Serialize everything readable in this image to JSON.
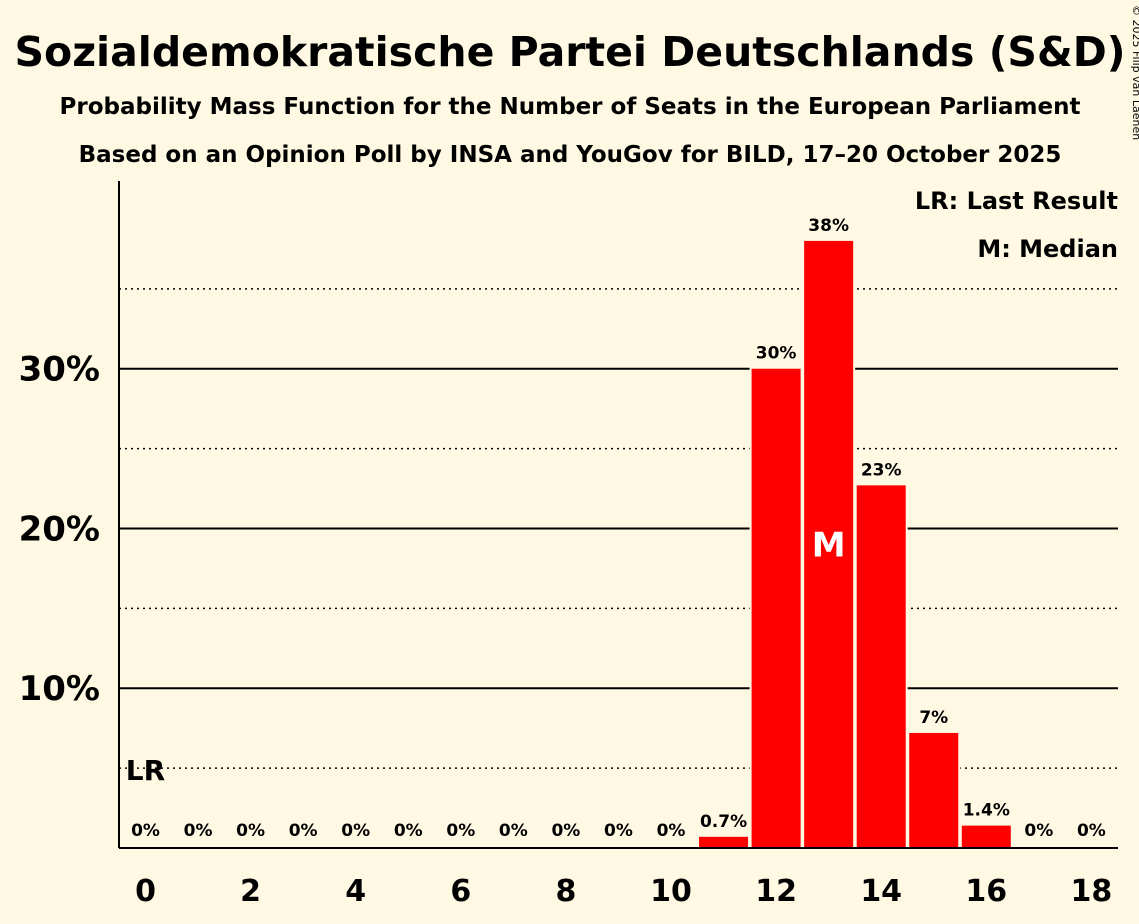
{
  "chart_data": {
    "type": "bar",
    "title": "Sozialdemokratische Partei Deutschlands (S&D)",
    "subtitle1": "Probability Mass Function for the Number of Seats in the European Parliament",
    "subtitle2": "Based on an Opinion Poll by INSA and YouGov for BILD, 17–20 October 2025",
    "copyright": "© 2025 Filip van Laenen",
    "xlabel": "",
    "ylabel": "",
    "x": [
      0,
      1,
      2,
      3,
      4,
      5,
      6,
      7,
      8,
      9,
      10,
      11,
      12,
      13,
      14,
      15,
      16,
      17,
      18
    ],
    "values": [
      0,
      0,
      0,
      0,
      0,
      0,
      0,
      0,
      0,
      0,
      0,
      0.7,
      30,
      38,
      22.7,
      7.2,
      1.4,
      0,
      0
    ],
    "labels": [
      "0%",
      "0%",
      "0%",
      "0%",
      "0%",
      "0%",
      "0%",
      "0%",
      "0%",
      "0%",
      "0%",
      "0.7%",
      "30%",
      "38%",
      "23%",
      "7%",
      "1.4%",
      "0%",
      "0%"
    ],
    "x_tick_values": [
      0,
      2,
      4,
      6,
      8,
      10,
      12,
      14,
      16,
      18
    ],
    "x_tick_labels": [
      "0",
      "2",
      "4",
      "6",
      "8",
      "10",
      "12",
      "14",
      "16",
      "18"
    ],
    "y_ticks_major": [
      10,
      20,
      30
    ],
    "y_tick_labels": [
      "10%",
      "20%",
      "30%"
    ],
    "y_ticks_minor": [
      5,
      15,
      25,
      35
    ],
    "ylim": [
      0,
      41.75
    ],
    "last_result_seat": 0,
    "last_result_level": 5,
    "last_result_marker": "LR",
    "median_seat": 13,
    "median_marker": "M",
    "legend": [
      "LR: Last Result",
      "M: Median"
    ],
    "colors": {
      "bar": "#ff0000",
      "background": "#fff8e3",
      "text": "#000000",
      "median_text": "#ffffff"
    }
  }
}
